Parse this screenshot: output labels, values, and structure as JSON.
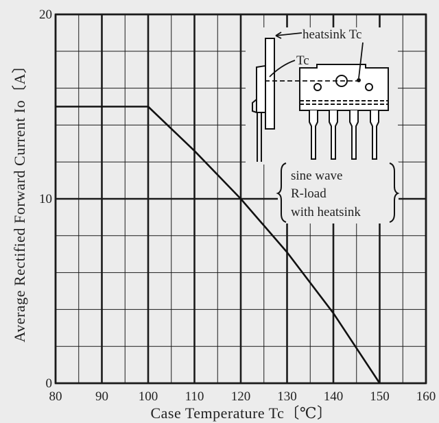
{
  "chart_data": {
    "type": "line",
    "xlabel": "Case Temperature Tc〔℃〕",
    "ylabel": "Average Rectified Forward Current Io〔A〕",
    "xlim": [
      80,
      160
    ],
    "ylim": [
      0,
      20
    ],
    "x_ticks": [
      "80",
      "90",
      "100",
      "110",
      "120",
      "130",
      "140",
      "150",
      "160"
    ],
    "y_ticks": [
      "0",
      "10",
      "20"
    ],
    "grid": true,
    "series": [
      {
        "x": [
          80,
          100,
          110,
          120,
          130,
          140,
          150
        ],
        "values": [
          15,
          15,
          12.6,
          10,
          7.1,
          3.8,
          0
        ]
      }
    ],
    "inset": {
      "heatsink_label": "heatsink Tc",
      "tc_label": "Tc",
      "conditions": [
        "sine wave",
        "R-load",
        "with heatsink"
      ]
    }
  },
  "colors": {
    "background": "#ececec",
    "grid_line": "#1a1a1a",
    "curve": "#111111"
  }
}
